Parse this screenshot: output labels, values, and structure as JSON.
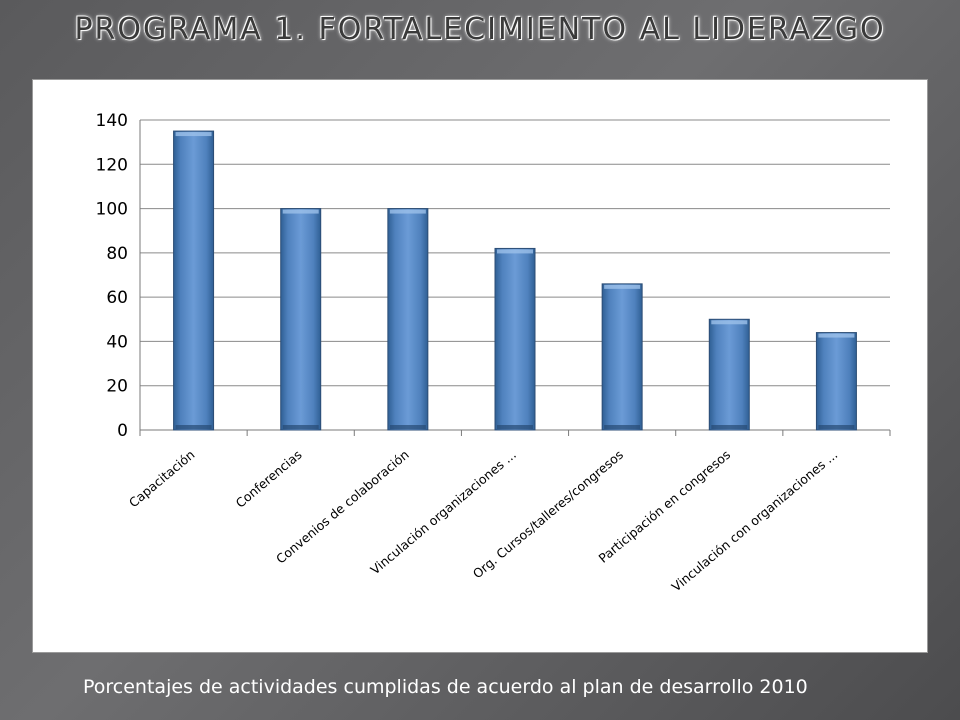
{
  "slide": {
    "title": "PROGRAMA 1. FORTALECIMIENTO AL LIDERAZGO",
    "caption": "Porcentajes  de actividades cumplidas de acuerdo al plan de desarrollo 2010"
  },
  "chart_data": {
    "type": "bar",
    "title": "",
    "xlabel": "",
    "ylabel": "",
    "ylim": [
      0,
      140
    ],
    "yticks": [
      0,
      20,
      40,
      60,
      80,
      100,
      120,
      140
    ],
    "grid": true,
    "legend": "none",
    "categories": [
      "Capacitación",
      "Conferencias",
      "Convenios de colaboración",
      "Vinculación organizaciones ...",
      "Org. Cursos/talleres/congresos",
      "Participación en congresos",
      "Vinculación con organizaciones ..."
    ],
    "values": [
      135,
      100,
      100,
      82,
      66,
      50,
      44
    ],
    "bar_color": "#4f81bd"
  }
}
